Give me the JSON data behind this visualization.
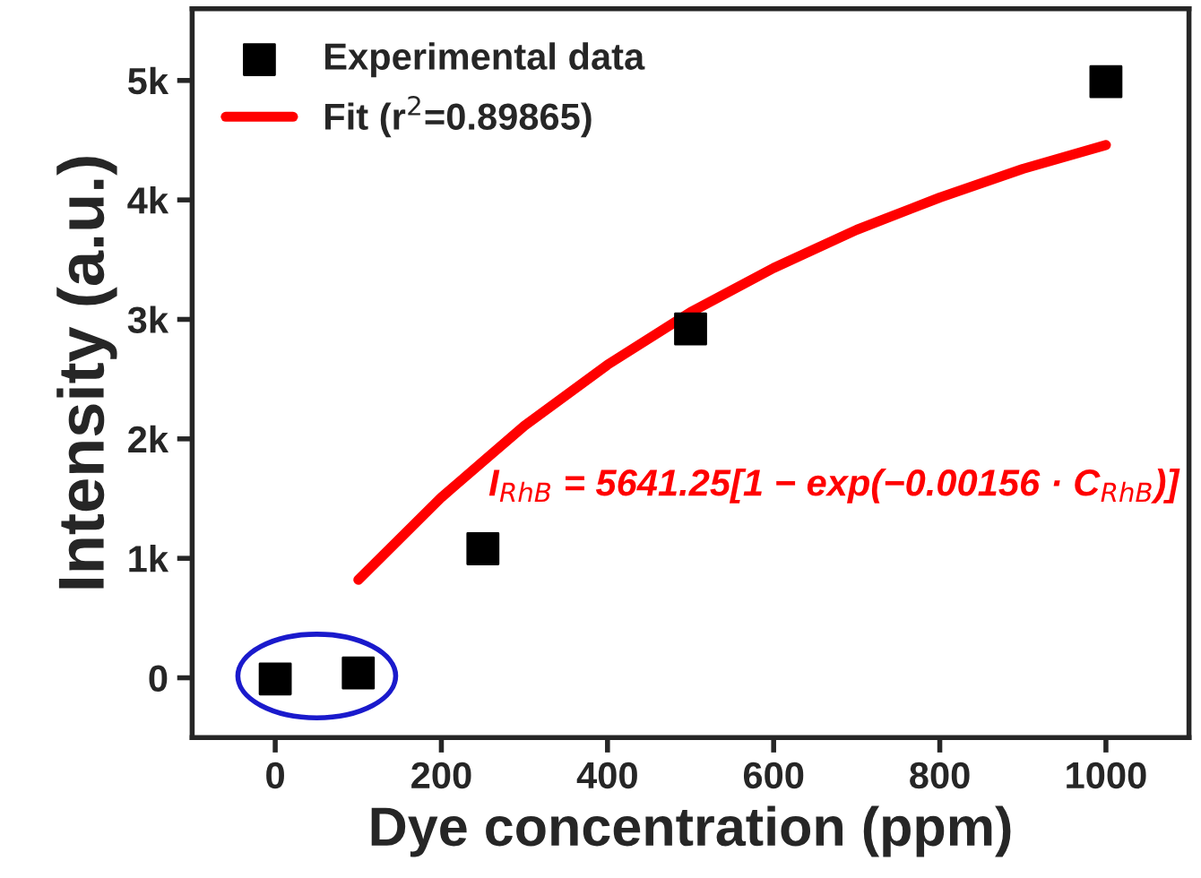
{
  "chart_data": {
    "type": "scatter",
    "xlabel": "Dye concentration (ppm)",
    "ylabel": "Intensity (a.u.)",
    "xlim": [
      -100,
      1100
    ],
    "xticks": [
      0,
      200,
      400,
      600,
      800,
      1000
    ],
    "ylim": [
      -500,
      5600
    ],
    "yticks": [
      {
        "value": 0,
        "label": "0"
      },
      {
        "value": 1000,
        "label": "1k"
      },
      {
        "value": 2000,
        "label": "2k"
      },
      {
        "value": 3000,
        "label": "3k"
      },
      {
        "value": 4000,
        "label": "4k"
      },
      {
        "value": 5000,
        "label": "5k"
      }
    ],
    "series": [
      {
        "name": "Experimental data",
        "color": "#000000",
        "marker": "square",
        "x": [
          0,
          100,
          250,
          500,
          1000
        ],
        "values": [
          -10,
          40,
          1080,
          2920,
          4990
        ]
      },
      {
        "name": "Fit (r$^{2}$=0.89865)",
        "type": "line",
        "color": "#ff0000",
        "marker": "none",
        "x": [
          100,
          200,
          300,
          400,
          500,
          600,
          700,
          800,
          900,
          1000
        ],
        "values": [
          820,
          1510,
          2110,
          2620,
          3060,
          3430,
          3750,
          4020,
          4260,
          4460
        ]
      }
    ],
    "annotations": [
      "I$_{RhB}$ = 5641.25[1 − exp(−0.00156 · C$_{RhB}$)]"
    ],
    "legend": "top left",
    "grid": false
  }
}
